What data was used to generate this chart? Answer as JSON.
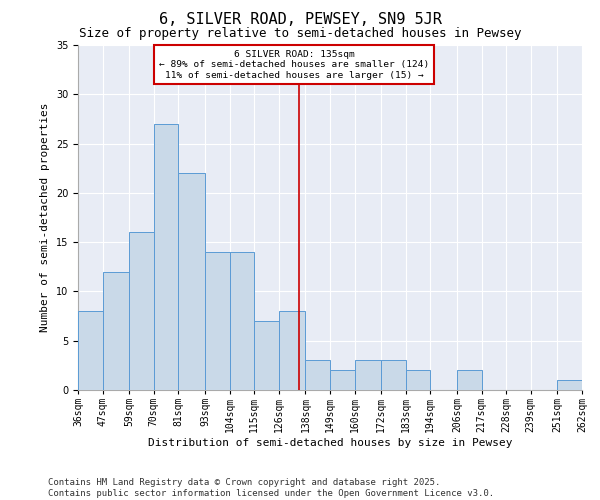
{
  "title": "6, SILVER ROAD, PEWSEY, SN9 5JR",
  "subtitle": "Size of property relative to semi-detached houses in Pewsey",
  "xlabel": "Distribution of semi-detached houses by size in Pewsey",
  "ylabel": "Number of semi-detached properties",
  "annotation_title": "6 SILVER ROAD: 135sqm",
  "annotation_line1": "← 89% of semi-detached houses are smaller (124)",
  "annotation_line2": "11% of semi-detached houses are larger (15) →",
  "property_size": 135,
  "bin_edges": [
    36,
    47,
    59,
    70,
    81,
    93,
    104,
    115,
    126,
    138,
    149,
    160,
    172,
    183,
    194,
    206,
    217,
    228,
    239,
    251,
    262
  ],
  "counts": [
    8,
    12,
    16,
    27,
    22,
    14,
    14,
    7,
    8,
    3,
    2,
    3,
    3,
    2,
    0,
    2,
    0,
    0,
    0,
    1
  ],
  "bar_color": "#c9d9e8",
  "bar_edge_color": "#5b9bd5",
  "ref_line_color": "#cc0000",
  "ref_line_x": 135,
  "annotation_box_color": "#cc0000",
  "ylim": [
    0,
    35
  ],
  "yticks": [
    0,
    5,
    10,
    15,
    20,
    25,
    30,
    35
  ],
  "background_color": "#e8ecf5",
  "footer": "Contains HM Land Registry data © Crown copyright and database right 2025.\nContains public sector information licensed under the Open Government Licence v3.0.",
  "title_fontsize": 11,
  "subtitle_fontsize": 9,
  "axis_label_fontsize": 8,
  "tick_fontsize": 7,
  "footer_fontsize": 6.5
}
